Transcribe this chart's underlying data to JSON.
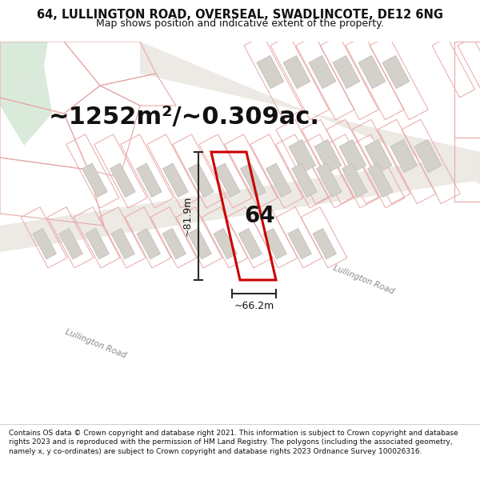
{
  "title_line1": "64, LULLINGTON ROAD, OVERSEAL, SWADLINCOTE, DE12 6NG",
  "title_line2": "Map shows position and indicative extent of the property.",
  "area_text": "~1252m²/~0.309ac.",
  "label_64": "64",
  "dim_height": "~81.9m",
  "dim_width": "~66.2m",
  "road_label1": "Lullington Road",
  "road_label2": "Lullington Road",
  "footer": "Contains OS data © Crown copyright and database right 2021. This information is subject to Crown copyright and database rights 2023 and is reproduced with the permission of HM Land Registry. The polygons (including the associated geometry, namely x, y co-ordinates) are subject to Crown copyright and database rights 2023 Ordnance Survey 100026316.",
  "map_bg": "#f7f5f2",
  "highlight_color": "#cc0000",
  "plot_line_color": "#e8a8a8",
  "building_fill": "#d4d0ca",
  "building_edge": "#c0bcb6",
  "dim_line_color": "#2a2a2a",
  "text_color": "#111111",
  "white": "#ffffff",
  "green_fill": "#daeada",
  "road_fill": "#ede9e4",
  "title_fontsize": 10.5,
  "subtitle_fontsize": 9.0,
  "area_fontsize": 22,
  "label_fontsize": 20,
  "dim_fontsize": 9,
  "road_fontsize": 7.5,
  "footer_fontsize": 6.5
}
